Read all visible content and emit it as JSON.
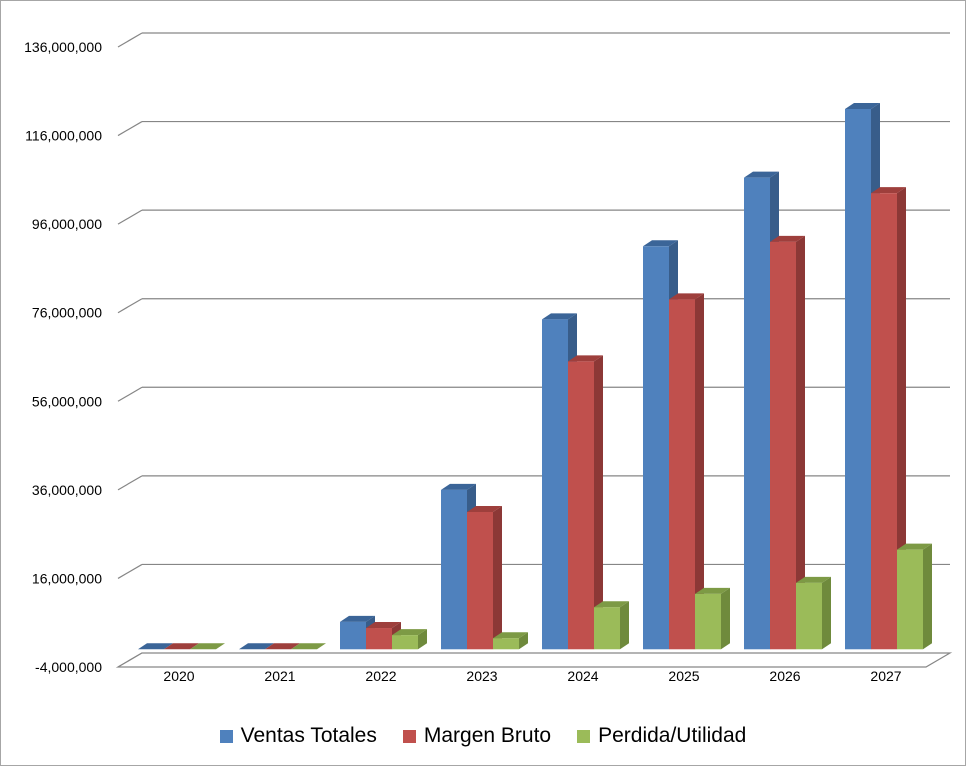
{
  "chart_data": {
    "type": "bar",
    "categories": [
      "2020",
      "2021",
      "2022",
      "2023",
      "2024",
      "2025",
      "2026",
      "2027"
    ],
    "series": [
      {
        "name": "Ventas Totales",
        "color": "#4f81bd",
        "side_color": "#385d8a",
        "top_color": "#3b6598",
        "values": [
          0,
          0,
          6200000,
          36000000,
          74500000,
          91000000,
          106500000,
          122000000
        ]
      },
      {
        "name": "Margen Bruto",
        "color": "#c0504d",
        "side_color": "#8c3836",
        "top_color": "#9e3f3c",
        "values": [
          0,
          0,
          4800000,
          31000000,
          65000000,
          79000000,
          92000000,
          103000000
        ]
      },
      {
        "name": "Perdida/Utilidad",
        "color": "#9bbb59",
        "side_color": "#6f8a3c",
        "top_color": "#7d9a45",
        "values": [
          0,
          0,
          3200000,
          2500000,
          9500000,
          12500000,
          15000000,
          22500000
        ]
      }
    ],
    "yticks": [
      "-4,000,000",
      "16,000,000",
      "36,000,000",
      "56,000,000",
      "76,000,000",
      "96,000,000",
      "116,000,000",
      "136,000,000"
    ],
    "ylim": [
      -4000000,
      136000000
    ],
    "grid": true,
    "legend_position": "bottom",
    "title": "",
    "xlabel": "",
    "ylabel": ""
  }
}
